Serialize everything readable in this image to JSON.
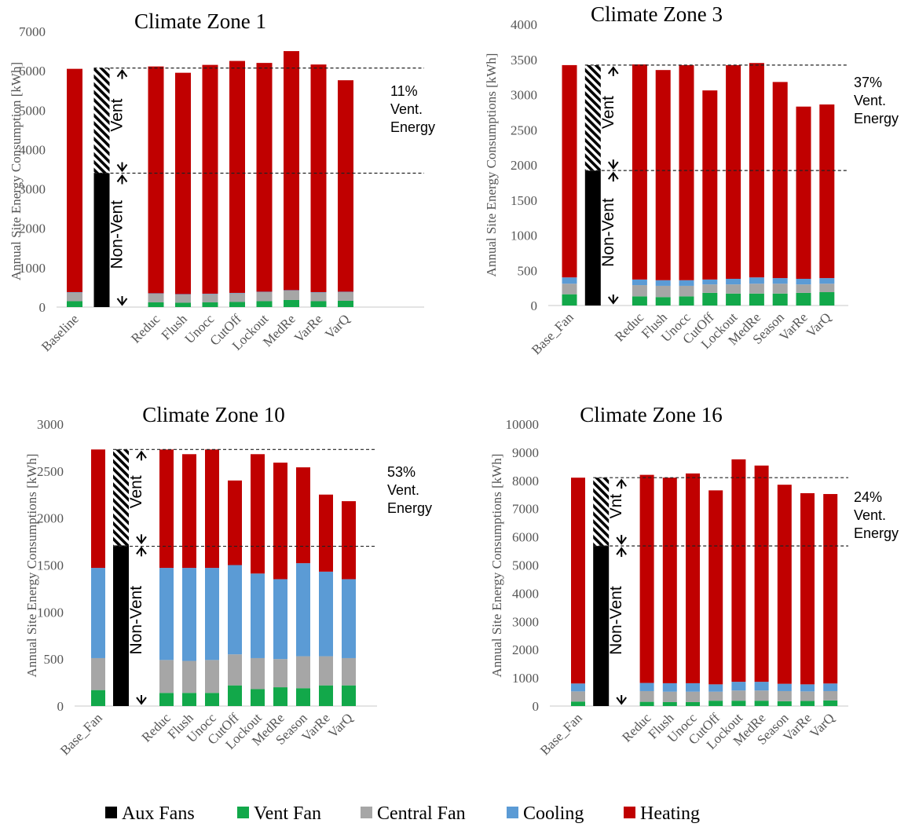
{
  "colors": {
    "Aux Fans": "#000000",
    "Vent Fan": "#12a84a",
    "Central Fan": "#a6a6a6",
    "Cooling": "#5b9bd5",
    "Heating": "#c00000"
  },
  "legend": [
    {
      "name": "Aux Fans",
      "color": "#000000"
    },
    {
      "name": "Vent Fan",
      "color": "#12a84a"
    },
    {
      "name": "Central Fan",
      "color": "#a6a6a6"
    },
    {
      "name": "Cooling",
      "color": "#5b9bd5"
    },
    {
      "name": "Heating",
      "color": "#c00000"
    }
  ],
  "chart_data": [
    {
      "type": "bar",
      "stacked": true,
      "title": "Climate Zone 1",
      "ylabel": "Annual Site Energy Consumption [kWh]",
      "ylim": [
        0,
        7000
      ],
      "ytick_step": 1000,
      "categories": [
        "Baseline",
        "",
        "",
        "Reduc",
        "Flush",
        "Unocc",
        "CutOff",
        "Lockout",
        "MedRe",
        "VarRe",
        "VarQ"
      ],
      "series": [
        {
          "name": "Vent Fan",
          "values": [
            150,
            null,
            null,
            120,
            110,
            120,
            130,
            150,
            180,
            150,
            160
          ]
        },
        {
          "name": "Central Fan",
          "values": [
            220,
            null,
            null,
            220,
            210,
            210,
            220,
            230,
            240,
            220,
            220
          ]
        },
        {
          "name": "Cooling",
          "values": [
            10,
            null,
            null,
            10,
            10,
            10,
            10,
            10,
            10,
            10,
            10
          ]
        },
        {
          "name": "Heating",
          "values": [
            5670,
            null,
            null,
            5760,
            5620,
            5810,
            5890,
            5810,
            6070,
            5780,
            5370
          ]
        }
      ],
      "aux_bar": {
        "position": 1,
        "non_vent": 3400,
        "vent": 2670,
        "total": 6070
      },
      "reference_lines": [
        6070,
        3400
      ],
      "labels": {
        "vent": "Vent",
        "non_vent": "Non-Vent"
      },
      "annotation": [
        "11%",
        "Vent.",
        "Energy"
      ]
    },
    {
      "type": "bar",
      "stacked": true,
      "title": "Climate Zone 3",
      "ylabel": "Annual Site Energy Consumptions [kWh]",
      "ylim": [
        0,
        4000
      ],
      "ytick_step": 500,
      "categories": [
        "Base_Fan",
        "",
        "",
        "Reduc",
        "Flush",
        "Unocc",
        "CutOff",
        "Lockout",
        "MedRe",
        "Season",
        "VarRe",
        "VarQ"
      ],
      "series": [
        {
          "name": "Vent Fan",
          "values": [
            160,
            null,
            null,
            130,
            120,
            130,
            180,
            170,
            170,
            170,
            180,
            190
          ]
        },
        {
          "name": "Central Fan",
          "values": [
            150,
            null,
            null,
            160,
            160,
            150,
            120,
            130,
            140,
            140,
            120,
            120
          ]
        },
        {
          "name": "Cooling",
          "values": [
            90,
            null,
            null,
            80,
            80,
            80,
            70,
            80,
            90,
            80,
            80,
            80
          ]
        },
        {
          "name": "Heating",
          "values": [
            3020,
            null,
            null,
            3060,
            2990,
            3060,
            2690,
            3040,
            3050,
            2790,
            2450,
            2470
          ]
        }
      ],
      "aux_bar": {
        "position": 1,
        "non_vent": 1920,
        "vent": 1500,
        "total": 3420
      },
      "reference_lines": [
        3420,
        1920
      ],
      "labels": {
        "vent": "Vent",
        "non_vent": "Non-Vent"
      },
      "annotation": [
        "37%",
        "Vent.",
        "Energy"
      ]
    },
    {
      "type": "bar",
      "stacked": true,
      "title": "Climate Zone 10",
      "ylabel": "Annual Site Energy Consumptions [kWh]",
      "ylim": [
        0,
        3000
      ],
      "ytick_step": 500,
      "categories": [
        "Base_Fan",
        "",
        "",
        "Reduc",
        "Flush",
        "Unocc",
        "CutOff",
        "Lockout",
        "MedRe",
        "Season",
        "VarRe",
        "VarQ"
      ],
      "series": [
        {
          "name": "Vent Fan",
          "values": [
            170,
            null,
            null,
            140,
            140,
            140,
            220,
            180,
            200,
            190,
            220,
            220
          ]
        },
        {
          "name": "Central Fan",
          "values": [
            340,
            null,
            null,
            350,
            340,
            350,
            330,
            330,
            300,
            340,
            310,
            290
          ]
        },
        {
          "name": "Cooling",
          "values": [
            960,
            null,
            null,
            980,
            990,
            980,
            950,
            900,
            850,
            990,
            900,
            840
          ]
        },
        {
          "name": "Heating",
          "values": [
            1260,
            null,
            null,
            1260,
            1210,
            1260,
            900,
            1270,
            1240,
            1020,
            820,
            830
          ]
        }
      ],
      "aux_bar": {
        "position": 1,
        "non_vent": 1710,
        "vent": 1020,
        "total": 2730
      },
      "reference_lines": [
        2730,
        1700
      ],
      "labels": {
        "vent": "Vent",
        "non_vent": "Non-Vent"
      },
      "annotation": [
        "53%",
        "Vent.",
        "Energy"
      ]
    },
    {
      "type": "bar",
      "stacked": true,
      "title": "Climate Zone 16",
      "ylabel": "Annual Site Energy Consumptions [kWh]",
      "ylim": [
        0,
        10000
      ],
      "ytick_step": 1000,
      "categories": [
        "Base_Fan",
        "",
        "",
        "Reduc",
        "Flush",
        "Unocc",
        "CutOff",
        "Lockout",
        "MedRe",
        "Season",
        "VarRe",
        "VarQ"
      ],
      "series": [
        {
          "name": "Vent Fan",
          "values": [
            160,
            null,
            null,
            150,
            140,
            140,
            190,
            190,
            190,
            170,
            180,
            200
          ]
        },
        {
          "name": "Central Fan",
          "values": [
            360,
            null,
            null,
            380,
            370,
            370,
            320,
            360,
            360,
            360,
            340,
            330
          ]
        },
        {
          "name": "Cooling",
          "values": [
            280,
            null,
            null,
            290,
            300,
            300,
            260,
            310,
            310,
            260,
            250,
            270
          ]
        },
        {
          "name": "Heating",
          "values": [
            7300,
            null,
            null,
            7380,
            7290,
            7440,
            6880,
            7890,
            7670,
            7060,
            6780,
            6720
          ]
        }
      ],
      "aux_bar": {
        "position": 1,
        "non_vent": 5680,
        "vent": 2420,
        "total": 8100
      },
      "reference_lines": [
        8100,
        5680
      ],
      "labels": {
        "vent": "Vnt",
        "non_vent": "Non-Vent"
      },
      "annotation": [
        "24%",
        "Vent.",
        "Energy"
      ]
    }
  ]
}
